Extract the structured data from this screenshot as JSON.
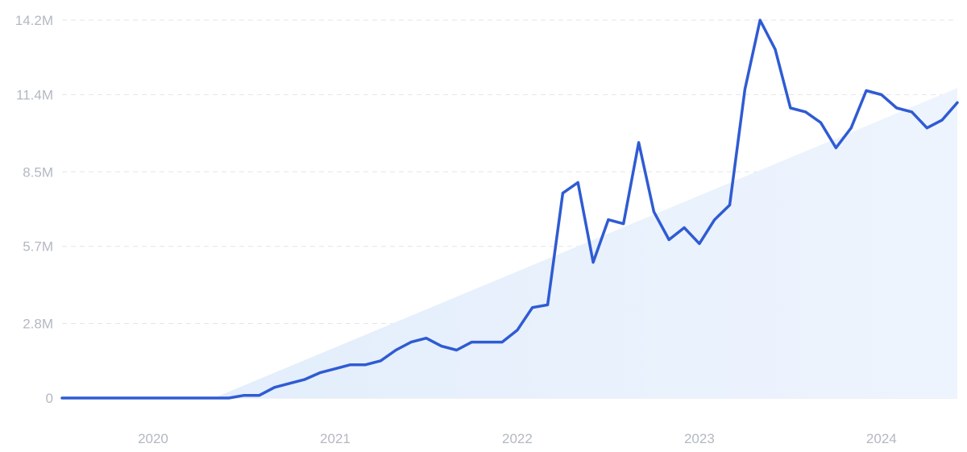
{
  "chart_data": {
    "type": "line",
    "title": "",
    "xlabel": "",
    "ylabel": "",
    "ylim": [
      0,
      14200000
    ],
    "xlim": [
      "2019-07",
      "2024-06"
    ],
    "grid": true,
    "y_ticks": [
      {
        "value": 0,
        "label": "0"
      },
      {
        "value": 2800000,
        "label": "2.8M"
      },
      {
        "value": 5700000,
        "label": "5.7M"
      },
      {
        "value": 8500000,
        "label": "8.5M"
      },
      {
        "value": 11400000,
        "label": "11.4M"
      },
      {
        "value": 14200000,
        "label": "14.2M"
      }
    ],
    "x_ticks": [
      {
        "value": "2020-01",
        "label": "2020"
      },
      {
        "value": "2021-01",
        "label": "2021"
      },
      {
        "value": "2022-01",
        "label": "2022"
      },
      {
        "value": "2023-01",
        "label": "2023"
      },
      {
        "value": "2024-01",
        "label": "2024"
      }
    ],
    "trend": {
      "start": [
        "2020-05",
        0
      ],
      "end": [
        "2024-06",
        11650000
      ]
    },
    "colors": {
      "line": "#2f5bd3",
      "trend_fill": "#e6f0fc",
      "grid": "#e3e6ea",
      "tick_text": "#b3b8c2"
    },
    "series": [
      {
        "x": [
          "2019-07",
          "2019-08",
          "2019-09",
          "2019-10",
          "2019-11",
          "2019-12",
          "2020-01",
          "2020-02",
          "2020-03",
          "2020-04",
          "2020-05",
          "2020-06",
          "2020-07",
          "2020-08",
          "2020-09",
          "2020-10",
          "2020-11",
          "2020-12",
          "2021-01",
          "2021-02",
          "2021-03",
          "2021-04",
          "2021-05",
          "2021-06",
          "2021-07",
          "2021-08",
          "2021-09",
          "2021-10",
          "2021-11",
          "2021-12",
          "2022-01",
          "2022-02",
          "2022-03",
          "2022-04",
          "2022-05",
          "2022-06",
          "2022-07",
          "2022-08",
          "2022-09",
          "2022-10",
          "2022-11",
          "2022-12",
          "2023-01",
          "2023-02",
          "2023-03",
          "2023-04",
          "2023-05",
          "2023-06",
          "2023-07",
          "2023-08",
          "2023-09",
          "2023-10",
          "2023-11",
          "2023-12",
          "2024-01",
          "2024-02",
          "2024-03",
          "2024-04",
          "2024-05",
          "2024-06"
        ],
        "values": [
          0,
          0,
          0,
          0,
          0,
          0,
          0,
          0,
          0,
          0,
          0,
          0,
          100000,
          100000,
          400000,
          550000,
          700000,
          950000,
          1100000,
          1250000,
          1250000,
          1400000,
          1800000,
          2100000,
          2250000,
          1950000,
          1800000,
          2100000,
          2100000,
          2100000,
          2550000,
          3400000,
          3500000,
          7700000,
          8100000,
          5100000,
          6700000,
          6550000,
          9600000,
          7000000,
          5950000,
          6400000,
          5800000,
          6700000,
          7250000,
          11600000,
          14200000,
          13100000,
          10900000,
          10750000,
          10350000,
          9400000,
          10150000,
          11550000,
          11400000,
          10900000,
          10750000,
          10150000,
          10450000,
          11100000
        ]
      }
    ]
  }
}
